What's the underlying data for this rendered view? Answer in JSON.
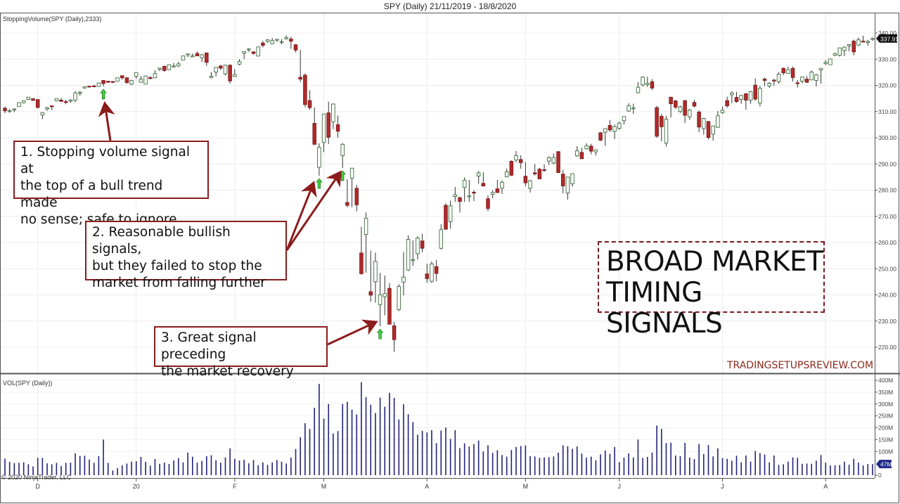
{
  "chart_data": {
    "type": "candlestick",
    "title": "SPY (Daily)  21/11/2019 - 18/8/2020",
    "indicator_label": "StoppingVolume(SPY (Daily),2333)",
    "volume_label": "VOL(SPY (Daily))",
    "copyright": "© 2020 NinjaTrader, LLC",
    "ylim": [
      216,
      344
    ],
    "y_ticks": [
      220,
      230,
      240,
      250,
      260,
      270,
      280,
      290,
      300,
      310,
      320,
      330,
      340
    ],
    "volume_ylim": [
      0,
      420
    ],
    "volume_ticks": [
      {
        "v": 0,
        "label": "0"
      },
      {
        "v": 100,
        "label": "100M"
      },
      {
        "v": 150,
        "label": "150M"
      },
      {
        "v": 200,
        "label": "200M"
      },
      {
        "v": 250,
        "label": "250M"
      },
      {
        "v": 300,
        "label": "300M"
      },
      {
        "v": 350,
        "label": "350M"
      },
      {
        "v": 400,
        "label": "400M"
      }
    ],
    "last_price": "337.91",
    "last_volume": "47M",
    "x_labels": [
      {
        "i": 7,
        "label": "D"
      },
      {
        "i": 28,
        "label": "20"
      },
      {
        "i": 49,
        "label": "F"
      },
      {
        "i": 68,
        "label": "M"
      },
      {
        "i": 90,
        "label": "A"
      },
      {
        "i": 111,
        "label": "M"
      },
      {
        "i": 131,
        "label": "J"
      },
      {
        "i": 153,
        "label": "J"
      },
      {
        "i": 175,
        "label": "A"
      }
    ],
    "grid": true,
    "colors": {
      "up_fill": "#ffffff",
      "up_outline": "#3a6b3a",
      "down_fill": "#b22a2a",
      "wick": "#333333",
      "volume": "#232379",
      "signal": "#3fd13f",
      "annotation": "#8b1c1c"
    },
    "signal_indices": [
      21,
      67,
      72,
      80
    ],
    "ohlc": [
      [
        311.3,
        311.9,
        309.4,
        310.3
      ],
      [
        310.3,
        311.0,
        309.6,
        310.3
      ],
      [
        310.9,
        311.2,
        309.8,
        311.0
      ],
      [
        311.9,
        313.4,
        311.8,
        313.4
      ],
      [
        313.4,
        314.3,
        313.1,
        314.1
      ],
      [
        314.6,
        315.5,
        314.5,
        315.5
      ],
      [
        314.9,
        315.1,
        314.1,
        314.3
      ],
      [
        314.6,
        314.7,
        311.2,
        311.6
      ],
      [
        308.7,
        309.7,
        307.1,
        309.6
      ],
      [
        311.0,
        311.8,
        310.3,
        311.5
      ],
      [
        312.2,
        312.3,
        310.6,
        312.0
      ],
      [
        314.1,
        315.0,
        313.9,
        314.9
      ],
      [
        314.4,
        315.2,
        313.8,
        313.9
      ],
      [
        313.8,
        314.5,
        312.8,
        313.5
      ],
      [
        314.0,
        314.7,
        313.4,
        314.4
      ],
      [
        314.4,
        317.9,
        313.6,
        317.1
      ],
      [
        316.9,
        317.9,
        316.1,
        317.3
      ],
      [
        319.0,
        319.4,
        318.8,
        319.5
      ],
      [
        319.7,
        319.8,
        319.2,
        319.6
      ],
      [
        319.8,
        320.2,
        319.5,
        319.6
      ],
      [
        319.6,
        321.0,
        319.5,
        320.9
      ],
      [
        321.9,
        322.0,
        319.6,
        320.7
      ],
      [
        321.6,
        321.7,
        321.0,
        321.2
      ],
      [
        321.5,
        321.5,
        320.9,
        321.2
      ],
      [
        321.6,
        322.9,
        321.6,
        322.9
      ],
      [
        323.7,
        323.8,
        322.2,
        322.9
      ],
      [
        322.9,
        323.1,
        320.6,
        321.1
      ],
      [
        320.5,
        322.1,
        320.1,
        321.9
      ],
      [
        323.5,
        324.9,
        322.5,
        324.9
      ],
      [
        321.2,
        323.6,
        321.1,
        322.4
      ],
      [
        320.5,
        323.7,
        320.4,
        323.6
      ],
      [
        323.0,
        323.5,
        322.2,
        322.7
      ],
      [
        322.9,
        325.8,
        322.7,
        324.5
      ],
      [
        326.2,
        326.7,
        325.5,
        326.6
      ],
      [
        327.3,
        327.5,
        325.2,
        325.7
      ],
      [
        326.0,
        327.9,
        325.9,
        327.9
      ],
      [
        327.4,
        328.6,
        326.8,
        327.4
      ],
      [
        327.4,
        329.0,
        327.0,
        328.2
      ],
      [
        329.7,
        331.3,
        329.6,
        331.3
      ],
      [
        331.7,
        332.0,
        330.8,
        332.0
      ],
      [
        330.9,
        332.2,
        330.8,
        331.3
      ],
      [
        332.2,
        332.9,
        331.2,
        331.3
      ],
      [
        330.6,
        332.0,
        328.9,
        331.7
      ],
      [
        332.4,
        332.5,
        327.4,
        328.8
      ],
      [
        323.0,
        325.1,
        322.7,
        323.5
      ],
      [
        325.1,
        327.0,
        323.4,
        326.9
      ],
      [
        327.4,
        327.9,
        325.9,
        326.6
      ],
      [
        324.4,
        327.9,
        323.8,
        327.7
      ],
      [
        327.7,
        328.1,
        320.7,
        321.7
      ],
      [
        323.4,
        326.2,
        323.2,
        324.1
      ],
      [
        328.1,
        330.0,
        327.7,
        329.1
      ],
      [
        332.3,
        333.0,
        330.0,
        332.9
      ],
      [
        333.9,
        334.2,
        332.8,
        333.9
      ],
      [
        332.8,
        333.0,
        331.8,
        332.2
      ],
      [
        331.2,
        334.8,
        331.2,
        334.7
      ],
      [
        336.2,
        337.0,
        334.5,
        335.3
      ],
      [
        336.8,
        337.6,
        336.3,
        337.4
      ],
      [
        335.9,
        338.1,
        335.8,
        337.1
      ],
      [
        337.5,
        337.7,
        336.6,
        337.6
      ],
      [
        336.5,
        337.7,
        335.7,
        336.7
      ],
      [
        337.8,
        339.1,
        337.5,
        338.3
      ],
      [
        337.7,
        338.6,
        334.0,
        336.9
      ],
      [
        335.5,
        335.8,
        332.6,
        333.5
      ],
      [
        323.1,
        333.6,
        321.3,
        322.4
      ],
      [
        323.9,
        324.6,
        311.7,
        312.7
      ],
      [
        314.2,
        318.1,
        310.7,
        311.5
      ],
      [
        305.5,
        311.6,
        297.5,
        297.5
      ],
      [
        288.7,
        297.9,
        285.5,
        296.3
      ],
      [
        298.2,
        309.2,
        294.5,
        309.1
      ],
      [
        309.5,
        313.8,
        297.6,
        300.2
      ],
      [
        306.1,
        313.1,
        303.3,
        312.9
      ],
      [
        305.0,
        308.5,
        300.0,
        302.5
      ],
      [
        293.2,
        298.0,
        288.5,
        297.5
      ],
      [
        275.3,
        284.2,
        273.5,
        274.2
      ],
      [
        284.6,
        288.5,
        273.5,
        288.4
      ],
      [
        280.7,
        282.0,
        271.9,
        274.4
      ],
      [
        256.0,
        266.0,
        247.7,
        248.1
      ],
      [
        263.1,
        271.5,
        248.5,
        269.3
      ],
      [
        241.2,
        256.9,
        237.4,
        239.9
      ],
      [
        245.0,
        256.2,
        237.0,
        252.8
      ],
      [
        236.3,
        248.4,
        228.0,
        240.0
      ],
      [
        239.3,
        247.4,
        232.2,
        240.5
      ],
      [
        242.5,
        244.5,
        228.8,
        228.8
      ],
      [
        228.2,
        229.7,
        218.3,
        222.9
      ],
      [
        234.4,
        244.1,
        233.8,
        243.2
      ],
      [
        244.9,
        256.4,
        239.8,
        246.8
      ],
      [
        249.5,
        262.8,
        249.1,
        261.2
      ],
      [
        253.3,
        260.8,
        251.1,
        253.4
      ],
      [
        255.7,
        262.4,
        253.5,
        261.7
      ],
      [
        260.6,
        263.3,
        256.2,
        257.8
      ],
      [
        248.0,
        251.9,
        244.6,
        246.2
      ],
      [
        245.2,
        252.7,
        244.6,
        251.8
      ],
      [
        250.8,
        253.3,
        245.2,
        248.2
      ],
      [
        257.8,
        267.0,
        257.3,
        264.9
      ],
      [
        274.2,
        275.0,
        264.9,
        265.1
      ],
      [
        268.0,
        276.0,
        265.3,
        274.0
      ],
      [
        277.6,
        281.2,
        275.5,
        278.2
      ],
      [
        277.1,
        277.5,
        271.4,
        275.7
      ],
      [
        281.0,
        284.9,
        275.5,
        283.8
      ],
      [
        277.6,
        283.9,
        275.5,
        277.8
      ],
      [
        279.2,
        280.0,
        275.8,
        279.1
      ],
      [
        285.4,
        287.3,
        282.4,
        286.6
      ],
      [
        282.6,
        286.8,
        281.4,
        281.6
      ],
      [
        276.7,
        278.0,
        272.0,
        273.0
      ],
      [
        278.4,
        280.0,
        276.9,
        279.1
      ],
      [
        280.5,
        283.9,
        278.9,
        279.1
      ],
      [
        280.7,
        283.7,
        278.5,
        283.0
      ],
      [
        285.1,
        288.3,
        285.0,
        287.0
      ],
      [
        291.0,
        291.4,
        285.4,
        285.7
      ],
      [
        291.5,
        294.9,
        290.7,
        293.2
      ],
      [
        291.7,
        293.3,
        288.2,
        290.5
      ],
      [
        285.3,
        290.7,
        281.5,
        282.8
      ],
      [
        280.7,
        283.9,
        279.1,
        283.6
      ],
      [
        286.6,
        290.0,
        285.6,
        286.2
      ],
      [
        288.0,
        288.5,
        284.4,
        284.3
      ],
      [
        287.8,
        289.8,
        287.1,
        287.7
      ],
      [
        291.1,
        292.9,
        289.6,
        292.4
      ],
      [
        290.3,
        294.0,
        289.9,
        292.5
      ],
      [
        294.7,
        294.9,
        286.6,
        286.7
      ],
      [
        286.1,
        287.8,
        278.8,
        281.6
      ],
      [
        278.9,
        285.1,
        276.4,
        285.0
      ],
      [
        282.4,
        286.3,
        281.3,
        286.3
      ],
      [
        293.1,
        296.8,
        292.7,
        295.0
      ],
      [
        294.4,
        296.2,
        292.0,
        292.0
      ],
      [
        295.8,
        297.9,
        295.5,
        296.9
      ],
      [
        296.8,
        297.7,
        293.7,
        294.9
      ],
      [
        294.6,
        295.6,
        293.2,
        295.4
      ],
      [
        301.9,
        302.2,
        298.7,
        299.1
      ],
      [
        302.1,
        303.6,
        296.9,
        303.5
      ],
      [
        304.7,
        306.8,
        302.2,
        303.0
      ],
      [
        302.5,
        305.0,
        299.5,
        304.3
      ],
      [
        303.6,
        306.2,
        303.1,
        305.6
      ],
      [
        306.5,
        308.1,
        305.1,
        308.1
      ],
      [
        310.2,
        313.2,
        309.9,
        312.2
      ],
      [
        311.1,
        313.0,
        309.1,
        311.4
      ],
      [
        317.2,
        321.3,
        317.0,
        319.3
      ],
      [
        320.2,
        323.4,
        319.6,
        323.2
      ],
      [
        320.3,
        323.3,
        319.4,
        320.8
      ],
      [
        321.4,
        322.4,
        318.2,
        319.0
      ],
      [
        311.5,
        312.2,
        300.0,
        300.6
      ],
      [
        308.2,
        309.1,
        298.6,
        304.2
      ],
      [
        298.0,
        308.3,
        296.7,
        307.1
      ],
      [
        315.5,
        315.6,
        307.8,
        313.0
      ],
      [
        314.1,
        314.4,
        311.0,
        311.7
      ],
      [
        310.0,
        312.3,
        309.5,
        311.8
      ],
      [
        314.2,
        314.4,
        305.6,
        308.6
      ],
      [
        308.0,
        311.0,
        306.8,
        310.6
      ],
      [
        313.5,
        314.5,
        311.6,
        312.1
      ],
      [
        309.8,
        310.5,
        302.1,
        304.1
      ],
      [
        303.5,
        307.6,
        301.2,
        307.4
      ],
      [
        306.2,
        306.4,
        299.4,
        300.1
      ],
      [
        301.4,
        304.6,
        298.9,
        304.5
      ],
      [
        304.0,
        310.2,
        303.8,
        308.4
      ],
      [
        309.6,
        311.9,
        309.1,
        310.5
      ],
      [
        314.2,
        315.7,
        311.5,
        312.2
      ],
      [
        316.4,
        317.8,
        313.2,
        317.1
      ],
      [
        315.4,
        317.5,
        313.4,
        313.8
      ],
      [
        314.6,
        316.3,
        313.0,
        316.2
      ],
      [
        316.8,
        317.1,
        310.7,
        314.4
      ],
      [
        314.3,
        317.9,
        313.0,
        317.6
      ],
      [
        320.1,
        322.7,
        314.1,
        314.8
      ],
      [
        313.3,
        319.8,
        312.0,
        318.9
      ],
      [
        322.4,
        323.0,
        319.7,
        321.9
      ],
      [
        319.8,
        321.3,
        319.0,
        320.8
      ],
      [
        322.0,
        322.6,
        319.8,
        321.7
      ],
      [
        321.4,
        325.1,
        320.6,
        324.3
      ],
      [
        326.5,
        326.9,
        323.9,
        324.8
      ],
      [
        324.6,
        327.2,
        324.5,
        326.0
      ],
      [
        326.5,
        327.2,
        321.5,
        323.0
      ],
      [
        321.0,
        322.0,
        319.2,
        320.9
      ],
      [
        321.6,
        323.4,
        320.8,
        323.2
      ],
      [
        322.4,
        323.6,
        320.9,
        321.2
      ],
      [
        322.1,
        325.7,
        322.0,
        325.1
      ],
      [
        321.9,
        324.4,
        319.6,
        324.0
      ],
      [
        325.9,
        326.6,
        320.6,
        326.5
      ],
      [
        328.3,
        329.6,
        327.7,
        328.8
      ],
      [
        327.9,
        330.1,
        327.9,
        330.1
      ],
      [
        331.5,
        332.4,
        331.2,
        332.1
      ],
      [
        331.5,
        334.5,
        331.0,
        334.3
      ],
      [
        333.3,
        334.9,
        331.2,
        334.6
      ],
      [
        335.1,
        335.8,
        333.0,
        335.6
      ],
      [
        336.9,
        337.5,
        331.5,
        332.8
      ],
      [
        335.4,
        338.3,
        335.0,
        337.4
      ],
      [
        336.9,
        339.0,
        336.6,
        336.8
      ],
      [
        336.4,
        337.4,
        335.2,
        336.8
      ],
      [
        337.9,
        338.3,
        337.0,
        337.91
      ]
    ],
    "volume": [
      70,
      56,
      51,
      52,
      54,
      46,
      37,
      73,
      73,
      50,
      46,
      52,
      39,
      52,
      53,
      92,
      81,
      82,
      66,
      52,
      80,
      150,
      52,
      20,
      30,
      42,
      49,
      57,
      59,
      77,
      56,
      40,
      68,
      48,
      53,
      47,
      62,
      72,
      54,
      95,
      78,
      53,
      60,
      80,
      84,
      63,
      53,
      75,
      113,
      69,
      62,
      65,
      50,
      64,
      42,
      54,
      43,
      54,
      64,
      57,
      49,
      74,
      110,
      160,
      219,
      195,
      284,
      385,
      239,
      300,
      176,
      186,
      300,
      309,
      276,
      256,
      392,
      329,
      297,
      262,
      327,
      289,
      347,
      326,
      235,
      299,
      257,
      224,
      171,
      187,
      180,
      190,
      135,
      188,
      201,
      153,
      190,
      114,
      134,
      121,
      131,
      146,
      100,
      126,
      94,
      105,
      85,
      78,
      106,
      119,
      123,
      125,
      80,
      79,
      73,
      75,
      76,
      79,
      95,
      126,
      122,
      111,
      121,
      91,
      74,
      78,
      63,
      88,
      104,
      90,
      119,
      55,
      74,
      92,
      75,
      150,
      73,
      77,
      95,
      209,
      195,
      135,
      137,
      83,
      80,
      136,
      74,
      68,
      132,
      89,
      127,
      79,
      113,
      72,
      69,
      61,
      82,
      54,
      83,
      57,
      102,
      93,
      87,
      54,
      83,
      43,
      46,
      57,
      75,
      73,
      48,
      49,
      48,
      61,
      85,
      53,
      41,
      42,
      43,
      57,
      44,
      69,
      53,
      41,
      47,
      47
    ]
  },
  "annotations": {
    "note1": [
      "1. Stopping volume signal at",
      "the top of a bull trend made",
      "no sense; safe to ignore"
    ],
    "note2": [
      "2. Reasonable bullish signals,",
      "but they failed to stop the",
      "market from falling further"
    ],
    "note3": [
      "3. Great signal preceding",
      "the market recovery"
    ],
    "headline": [
      "BROAD MARKET",
      "TIMING SIGNALS"
    ],
    "watermark": "TRADINGSETUPSREVIEW.COM"
  }
}
